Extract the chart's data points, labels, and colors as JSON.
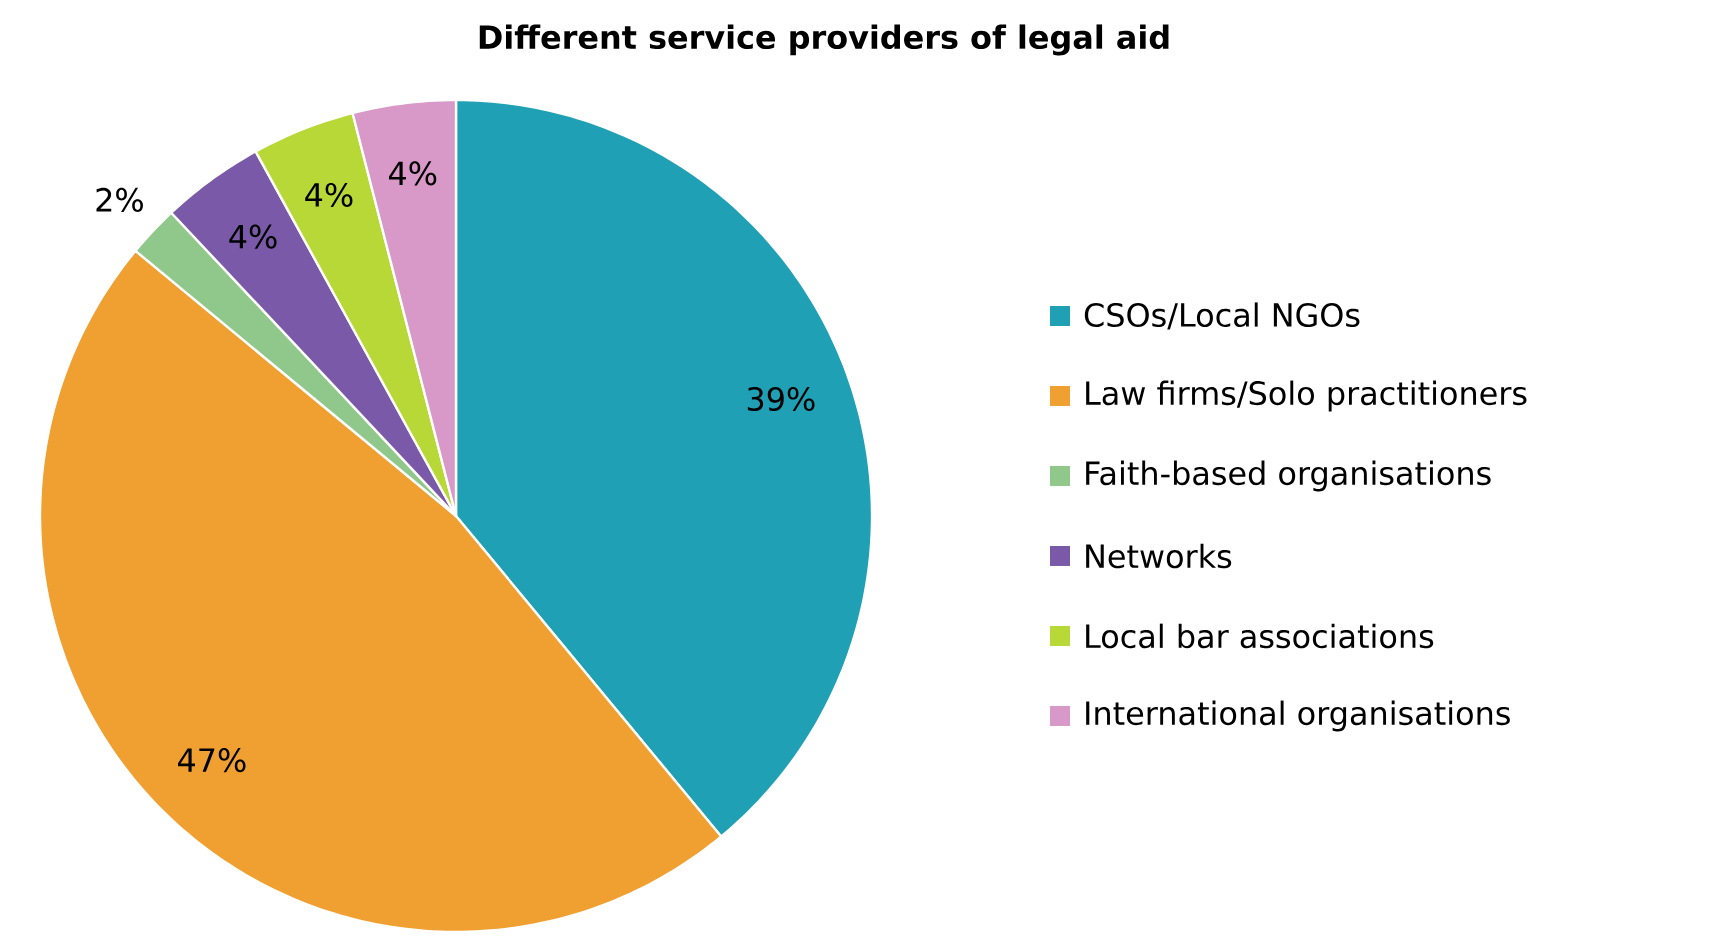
{
  "chart_data": {
    "type": "pie",
    "title": "Different service providers of legal aid",
    "categories": [
      "CSOs/Local NGOs",
      "Law firms/Solo practitioners",
      "Faith-based organisations",
      "Networks",
      "Local bar associations",
      "International organisations"
    ],
    "values": [
      39,
      47,
      2,
      4,
      4,
      4
    ],
    "value_labels": [
      "39%",
      "47%",
      "2%",
      "4%",
      "4%",
      "4%"
    ],
    "colors": [
      "#1fa0b4",
      "#f0a030",
      "#8fc88a",
      "#7a5aa8",
      "#b8d838",
      "#d898c8"
    ],
    "legend": "right"
  }
}
